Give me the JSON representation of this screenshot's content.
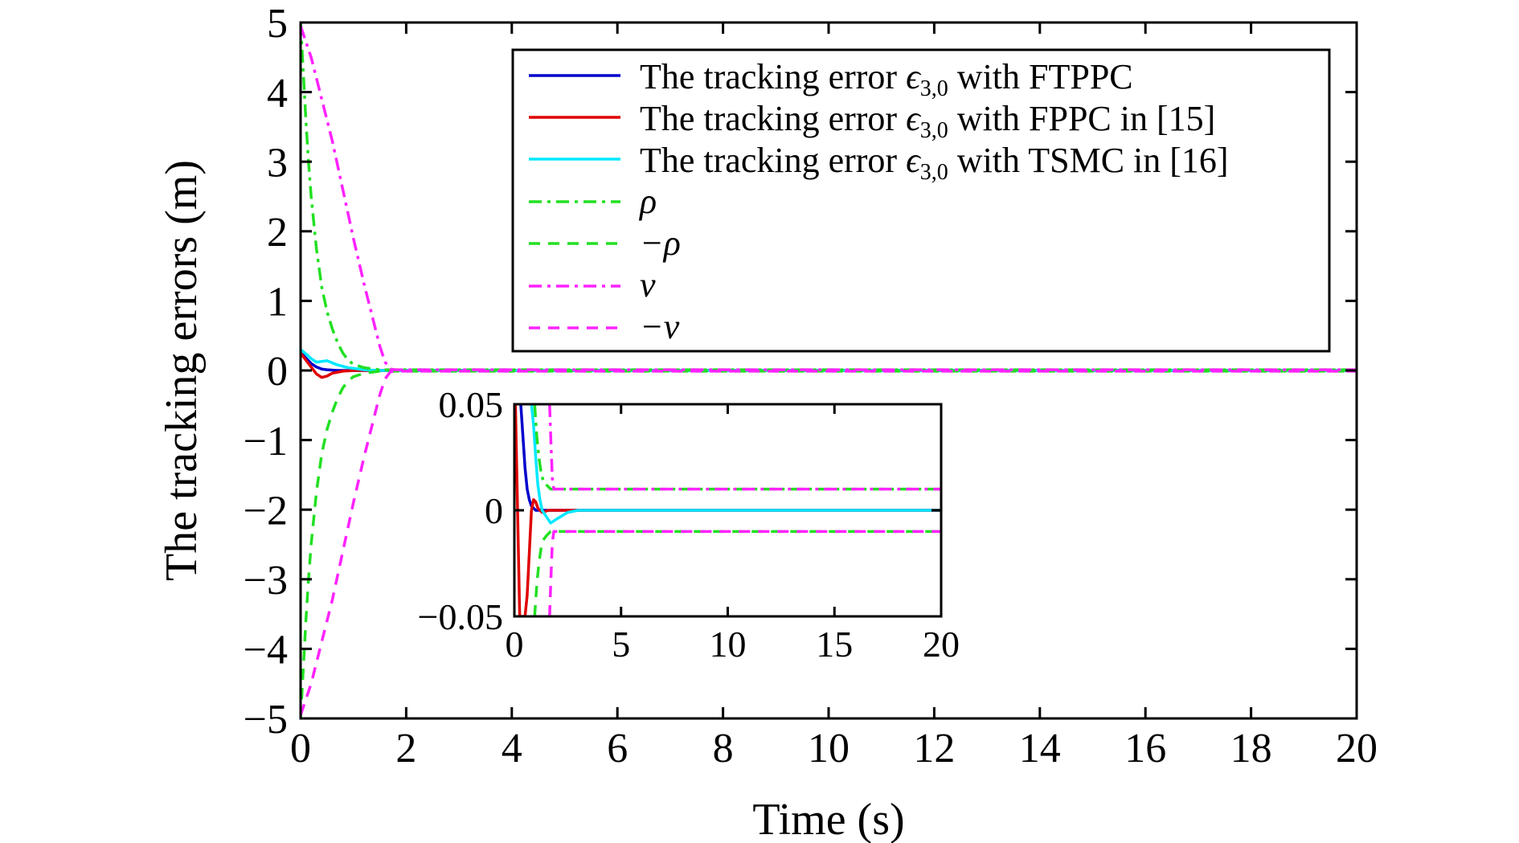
{
  "chart_data": [
    {
      "type": "line",
      "title": "",
      "xlabel": "Time (s)",
      "ylabel": "The tracking errors (m)",
      "xlim": [
        0,
        20
      ],
      "ylim": [
        -5,
        5
      ],
      "xticks": [
        0,
        2,
        4,
        6,
        8,
        10,
        12,
        14,
        16,
        18,
        20
      ],
      "xtick_labels": [
        "0",
        "2",
        "4",
        "6",
        "8",
        "10",
        "12",
        "14",
        "16",
        "18",
        "20"
      ],
      "yticks": [
        -5,
        -4,
        -3,
        -2,
        -1,
        0,
        1,
        2,
        3,
        4,
        5
      ],
      "ytick_labels": [
        "−5",
        "−4",
        "−3",
        "−2",
        "−1",
        "0",
        "1",
        "2",
        "3",
        "4",
        "5"
      ],
      "grid": false,
      "legend_position": "top-right",
      "legend_entries": [
        "The tracking error ϵ3,0 with FTPPC",
        "The tracking error ϵ3,0 with FPPC in [15]",
        "The tracking error ϵ3,0 with TSMC in [16]",
        "ρ",
        "−ρ",
        "v",
        "−v"
      ],
      "series": [
        {
          "name": "The tracking error ϵ3,0 with FTPPC",
          "color": "#0000cc",
          "dash": "solid",
          "x": [
            0,
            0.05,
            0.1,
            0.2,
            0.3,
            0.4,
            0.5,
            0.7,
            1.0,
            1.5,
            2,
            20
          ],
          "y": [
            0.25,
            0.22,
            0.18,
            0.1,
            0.05,
            0.02,
            0.01,
            0.0,
            0.0,
            0.0,
            0.0,
            0.0
          ]
        },
        {
          "name": "The tracking error ϵ3,0 with FPPC in [15]",
          "color": "#e00000",
          "dash": "solid",
          "x": [
            0,
            0.1,
            0.2,
            0.3,
            0.4,
            0.5,
            0.6,
            0.8,
            1.0,
            1.5,
            2,
            20
          ],
          "y": [
            0.25,
            0.15,
            0.05,
            -0.05,
            -0.1,
            -0.08,
            -0.04,
            -0.01,
            0.0,
            0.0,
            0.0,
            0.0
          ]
        },
        {
          "name": "The tracking error ϵ3,0 with TSMC in [16]",
          "color": "#00e8ff",
          "dash": "solid",
          "x": [
            0,
            0.1,
            0.2,
            0.3,
            0.5,
            0.7,
            0.9,
            1.2,
            1.5,
            2.0,
            2.5,
            3,
            20
          ],
          "y": [
            0.3,
            0.24,
            0.17,
            0.12,
            0.14,
            0.08,
            0.04,
            0.01,
            0.0,
            0.0,
            0.0,
            0.0,
            0.0
          ]
        },
        {
          "name": "ρ",
          "color": "#22e022",
          "dash": "dashdot",
          "x": [
            0,
            0.05,
            0.1,
            0.15,
            0.2,
            0.3,
            0.4,
            0.5,
            0.6,
            0.7,
            0.8,
            0.9,
            1.0,
            1.2,
            1.5,
            2,
            20
          ],
          "y": [
            5,
            4.3,
            3.6,
            3.0,
            2.5,
            1.75,
            1.2,
            0.85,
            0.6,
            0.4,
            0.25,
            0.15,
            0.09,
            0.04,
            0.01,
            0.01,
            0.01
          ]
        },
        {
          "name": "−ρ",
          "color": "#22e022",
          "dash": "dashed",
          "x": [
            0,
            0.05,
            0.1,
            0.15,
            0.2,
            0.3,
            0.4,
            0.5,
            0.6,
            0.7,
            0.8,
            0.9,
            1.0,
            1.2,
            1.5,
            2,
            20
          ],
          "y": [
            -5,
            -4.3,
            -3.6,
            -3.0,
            -2.5,
            -1.75,
            -1.2,
            -0.85,
            -0.6,
            -0.4,
            -0.25,
            -0.15,
            -0.09,
            -0.04,
            -0.01,
            -0.01,
            -0.01
          ]
        },
        {
          "name": "v",
          "color": "#ff22ff",
          "dash": "dashdot",
          "x": [
            0,
            0.2,
            0.4,
            0.6,
            0.8,
            1.0,
            1.2,
            1.4,
            1.5,
            1.6,
            1.7,
            1.8,
            20
          ],
          "y": [
            4.95,
            4.5,
            3.9,
            3.3,
            2.6,
            1.9,
            1.25,
            0.65,
            0.35,
            0.12,
            0.02,
            0.01,
            0.01
          ]
        },
        {
          "name": "−v",
          "color": "#ff22ff",
          "dash": "dashed",
          "x": [
            0,
            0.2,
            0.4,
            0.6,
            0.8,
            1.0,
            1.2,
            1.4,
            1.5,
            1.6,
            1.7,
            1.8,
            20
          ],
          "y": [
            -4.95,
            -4.5,
            -3.9,
            -3.3,
            -2.6,
            -1.9,
            -1.25,
            -0.65,
            -0.35,
            -0.12,
            -0.02,
            -0.01,
            -0.01
          ]
        }
      ]
    },
    {
      "type": "line",
      "title": "",
      "xlabel": "",
      "ylabel": "",
      "xlim": [
        0,
        20
      ],
      "ylim": [
        -0.05,
        0.05
      ],
      "xticks": [
        0,
        5,
        10,
        15,
        20
      ],
      "xtick_labels": [
        "0",
        "5",
        "10",
        "15",
        "20"
      ],
      "yticks": [
        -0.05,
        0,
        0.05
      ],
      "ytick_labels": [
        "−0.05",
        "0",
        "0.05"
      ],
      "grid": false,
      "legend_position": "none",
      "series": [
        {
          "color": "#0000cc",
          "dash": "solid",
          "x": [
            0.3,
            0.4,
            0.5,
            0.6,
            0.7,
            0.8,
            1.0,
            1.2,
            20
          ],
          "y": [
            0.05,
            0.035,
            0.02,
            0.01,
            0.005,
            0.002,
            0.0,
            0.0,
            0.0
          ]
        },
        {
          "color": "#e00000",
          "dash": "solid",
          "x": [
            0.05,
            0.15,
            0.25,
            0.4,
            0.5,
            0.6,
            0.7,
            0.8,
            0.9,
            1.0,
            1.1,
            1.3,
            1.6,
            2.0,
            20
          ],
          "y": [
            0.05,
            0.0,
            -0.05,
            -0.05,
            -0.05,
            -0.04,
            -0.02,
            0.0,
            0.005,
            0.004,
            0.001,
            -0.001,
            0.0,
            0.0,
            0.0
          ]
        },
        {
          "color": "#00e8ff",
          "dash": "solid",
          "x": [
            0.8,
            0.9,
            1.0,
            1.1,
            1.2,
            1.3,
            1.5,
            1.7,
            2.0,
            2.5,
            3.0,
            3.5,
            20
          ],
          "y": [
            0.05,
            0.04,
            0.025,
            0.012,
            0.005,
            0.0,
            -0.003,
            -0.006,
            -0.004,
            -0.001,
            0.0,
            0.0,
            0.0
          ]
        },
        {
          "color": "#22e022",
          "dash": "dashdot",
          "x": [
            0.95,
            1.05,
            1.15,
            1.25,
            1.35,
            1.5,
            1.7,
            20
          ],
          "y": [
            0.05,
            0.035,
            0.025,
            0.018,
            0.014,
            0.012,
            0.01,
            0.01
          ]
        },
        {
          "color": "#22e022",
          "dash": "dashed",
          "x": [
            0.95,
            1.05,
            1.15,
            1.25,
            1.35,
            1.5,
            1.7,
            20
          ],
          "y": [
            -0.05,
            -0.035,
            -0.025,
            -0.018,
            -0.014,
            -0.012,
            -0.01,
            -0.01
          ]
        },
        {
          "color": "#ff22ff",
          "dash": "dashdot",
          "x": [
            1.65,
            1.72,
            1.78,
            1.85,
            20
          ],
          "y": [
            0.05,
            0.03,
            0.015,
            0.01,
            0.01
          ]
        },
        {
          "color": "#ff22ff",
          "dash": "dashed",
          "x": [
            1.65,
            1.72,
            1.78,
            1.85,
            20
          ],
          "y": [
            -0.05,
            -0.03,
            -0.015,
            -0.01,
            -0.01
          ]
        }
      ]
    }
  ]
}
